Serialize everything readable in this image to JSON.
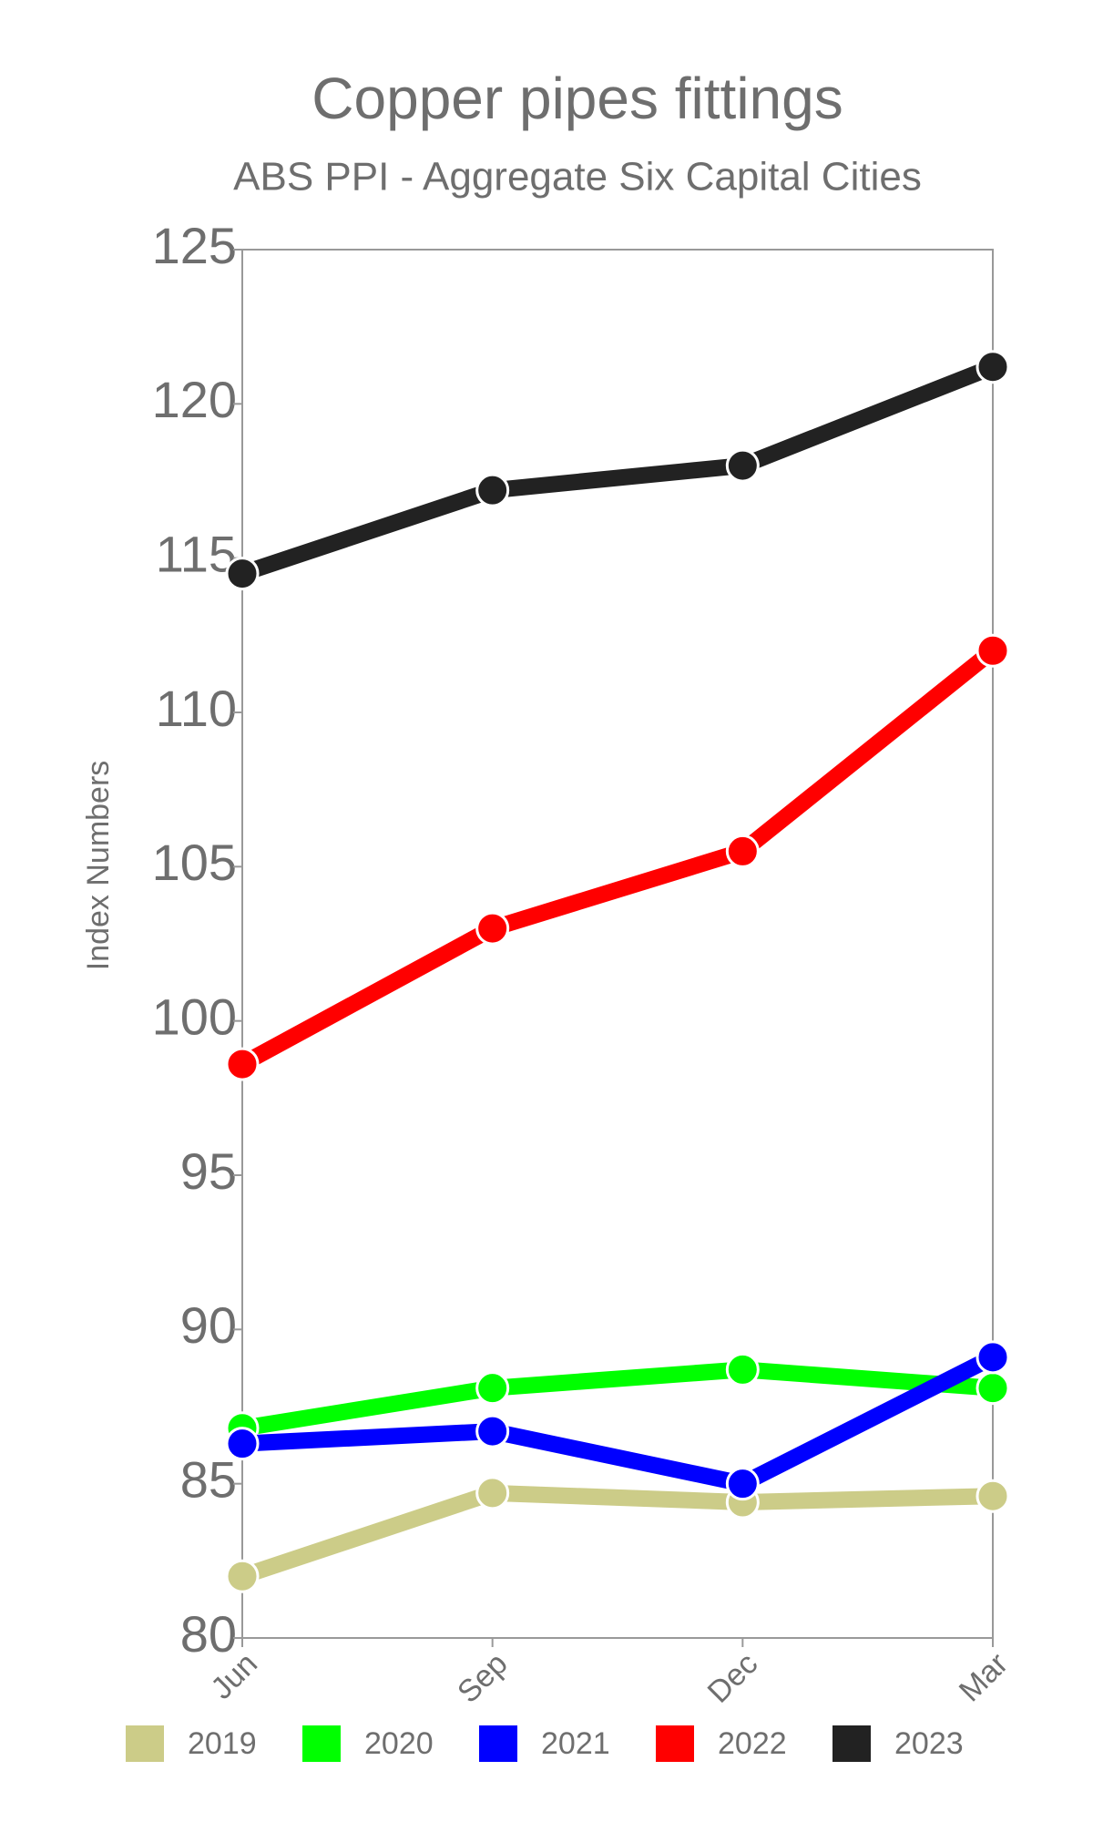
{
  "chart_data": {
    "type": "line",
    "title": "Copper pipes fittings",
    "subtitle": "ABS PPI - Aggregate Six Capital Cities",
    "y_label": "Index Numbers",
    "categories": [
      "Jun",
      "Sep",
      "Dec",
      "Mar"
    ],
    "series": [
      {
        "name": "2019",
        "color": "#cccc88",
        "values": [
          82.0,
          84.7,
          84.4,
          84.6
        ]
      },
      {
        "name": "2020",
        "color": "#00ff00",
        "values": [
          86.8,
          88.1,
          88.7,
          88.1
        ]
      },
      {
        "name": "2021",
        "color": "#0000ff",
        "values": [
          86.3,
          86.7,
          85.0,
          89.1
        ]
      },
      {
        "name": "2022",
        "color": "#ff0000",
        "values": [
          98.6,
          103.0,
          105.5,
          112.0
        ]
      },
      {
        "name": "2023",
        "color": "#222222",
        "values": [
          114.5,
          117.2,
          118.0,
          121.2
        ]
      }
    ],
    "ylim": [
      80,
      125
    ],
    "yticks": [
      80,
      85,
      90,
      95,
      100,
      105,
      110,
      115,
      120,
      125
    ],
    "grid": false,
    "legend": "bottom"
  }
}
